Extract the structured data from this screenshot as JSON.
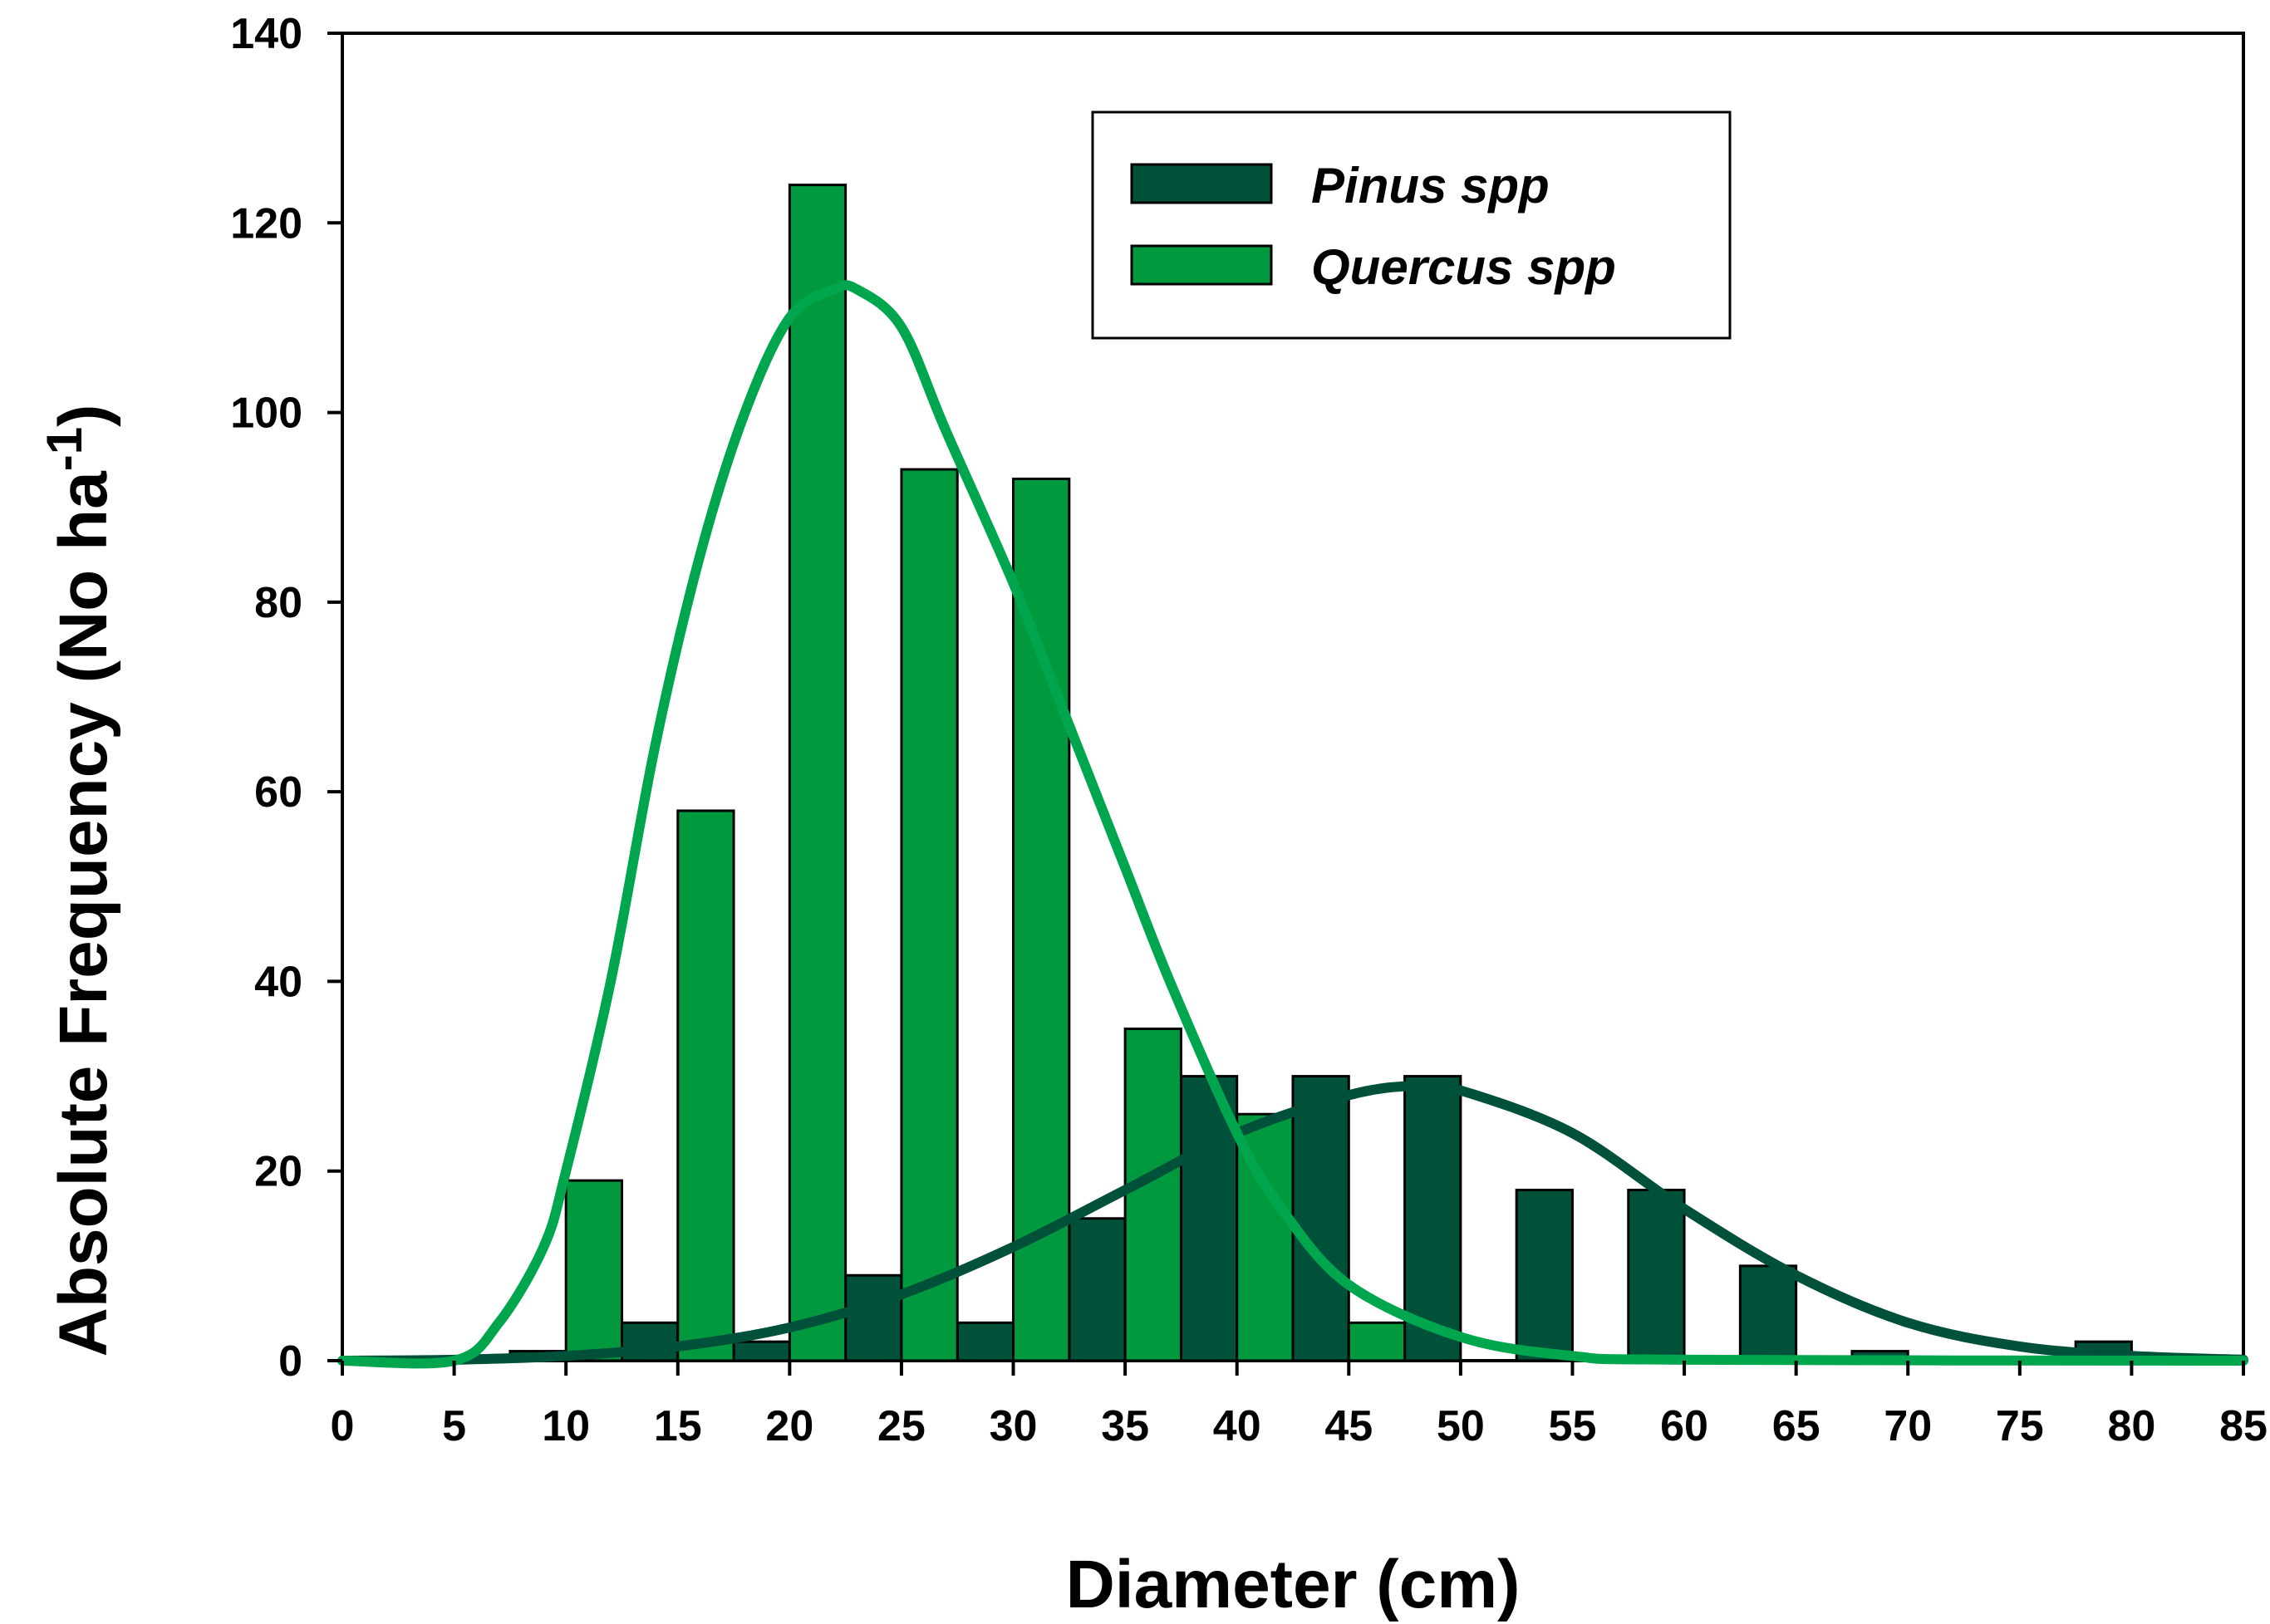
{
  "chart_data": {
    "type": "bar",
    "xlabel": "Diameter (cm)",
    "ylabel_main": "Absolute Frequency (No ha",
    "ylabel_sup": "-1",
    "ylabel_close": ")",
    "xlim": [
      0,
      85
    ],
    "ylim": [
      0,
      140
    ],
    "x_ticks": [
      "0",
      "5",
      "10",
      "15",
      "20",
      "25",
      "30",
      "35",
      "40",
      "45",
      "50",
      "55",
      "60",
      "65",
      "70",
      "75",
      "80",
      "85"
    ],
    "y_ticks": [
      "0",
      "20",
      "40",
      "60",
      "80",
      "100",
      "120",
      "140"
    ],
    "grid": false,
    "legend_position": "top-right",
    "series": [
      {
        "name": "Pinus spp",
        "kind": "bar",
        "color": "#00513a",
        "values": [
          {
            "x": 7.5,
            "y": 1
          },
          {
            "x": 12.5,
            "y": 4
          },
          {
            "x": 17.5,
            "y": 2
          },
          {
            "x": 22.5,
            "y": 9
          },
          {
            "x": 27.5,
            "y": 4
          },
          {
            "x": 32.5,
            "y": 15
          },
          {
            "x": 37.5,
            "y": 30
          },
          {
            "x": 42.5,
            "y": 30
          },
          {
            "x": 47.5,
            "y": 30
          },
          {
            "x": 52.5,
            "y": 18
          },
          {
            "x": 57.5,
            "y": 18
          },
          {
            "x": 62.5,
            "y": 10
          },
          {
            "x": 67.5,
            "y": 1
          },
          {
            "x": 77.5,
            "y": 2
          }
        ]
      },
      {
        "name": "Quercus spp",
        "kind": "bar",
        "color": "#00993d",
        "values": [
          {
            "x": 7.5,
            "y": 0
          },
          {
            "x": 12.5,
            "y": 19
          },
          {
            "x": 17.5,
            "y": 58
          },
          {
            "x": 22.5,
            "y": 124
          },
          {
            "x": 27.5,
            "y": 94
          },
          {
            "x": 32.5,
            "y": 93
          },
          {
            "x": 37.5,
            "y": 35
          },
          {
            "x": 42.5,
            "y": 26
          },
          {
            "x": 47.5,
            "y": 4
          }
        ]
      }
    ],
    "curves": [
      {
        "for": "Pinus spp",
        "color": "#00513a",
        "points": [
          [
            0,
            0
          ],
          [
            5,
            0.1
          ],
          [
            10,
            0.5
          ],
          [
            15,
            1.5
          ],
          [
            20,
            3.5
          ],
          [
            25,
            7
          ],
          [
            30,
            12
          ],
          [
            35,
            18
          ],
          [
            40,
            24
          ],
          [
            45,
            28
          ],
          [
            48,
            29
          ],
          [
            50,
            28.5
          ],
          [
            55,
            24
          ],
          [
            60,
            16
          ],
          [
            65,
            9
          ],
          [
            70,
            4
          ],
          [
            75,
            1.5
          ],
          [
            80,
            0.5
          ],
          [
            85,
            0.1
          ]
        ]
      },
      {
        "for": "Quercus spp",
        "color": "#00a64d",
        "points": [
          [
            0,
            0
          ],
          [
            5,
            0
          ],
          [
            7,
            4
          ],
          [
            9,
            12
          ],
          [
            10,
            20
          ],
          [
            12,
            40
          ],
          [
            14,
            65
          ],
          [
            16,
            85
          ],
          [
            18,
            100
          ],
          [
            20,
            110
          ],
          [
            22,
            113
          ],
          [
            23,
            113
          ],
          [
            25,
            109
          ],
          [
            27,
            98
          ],
          [
            30,
            82
          ],
          [
            32,
            70
          ],
          [
            35,
            52
          ],
          [
            37,
            40
          ],
          [
            40,
            24
          ],
          [
            42,
            16
          ],
          [
            45,
            8
          ],
          [
            50,
            2.5
          ],
          [
            55,
            0.5
          ],
          [
            60,
            0.1
          ],
          [
            85,
            0
          ]
        ]
      }
    ]
  }
}
